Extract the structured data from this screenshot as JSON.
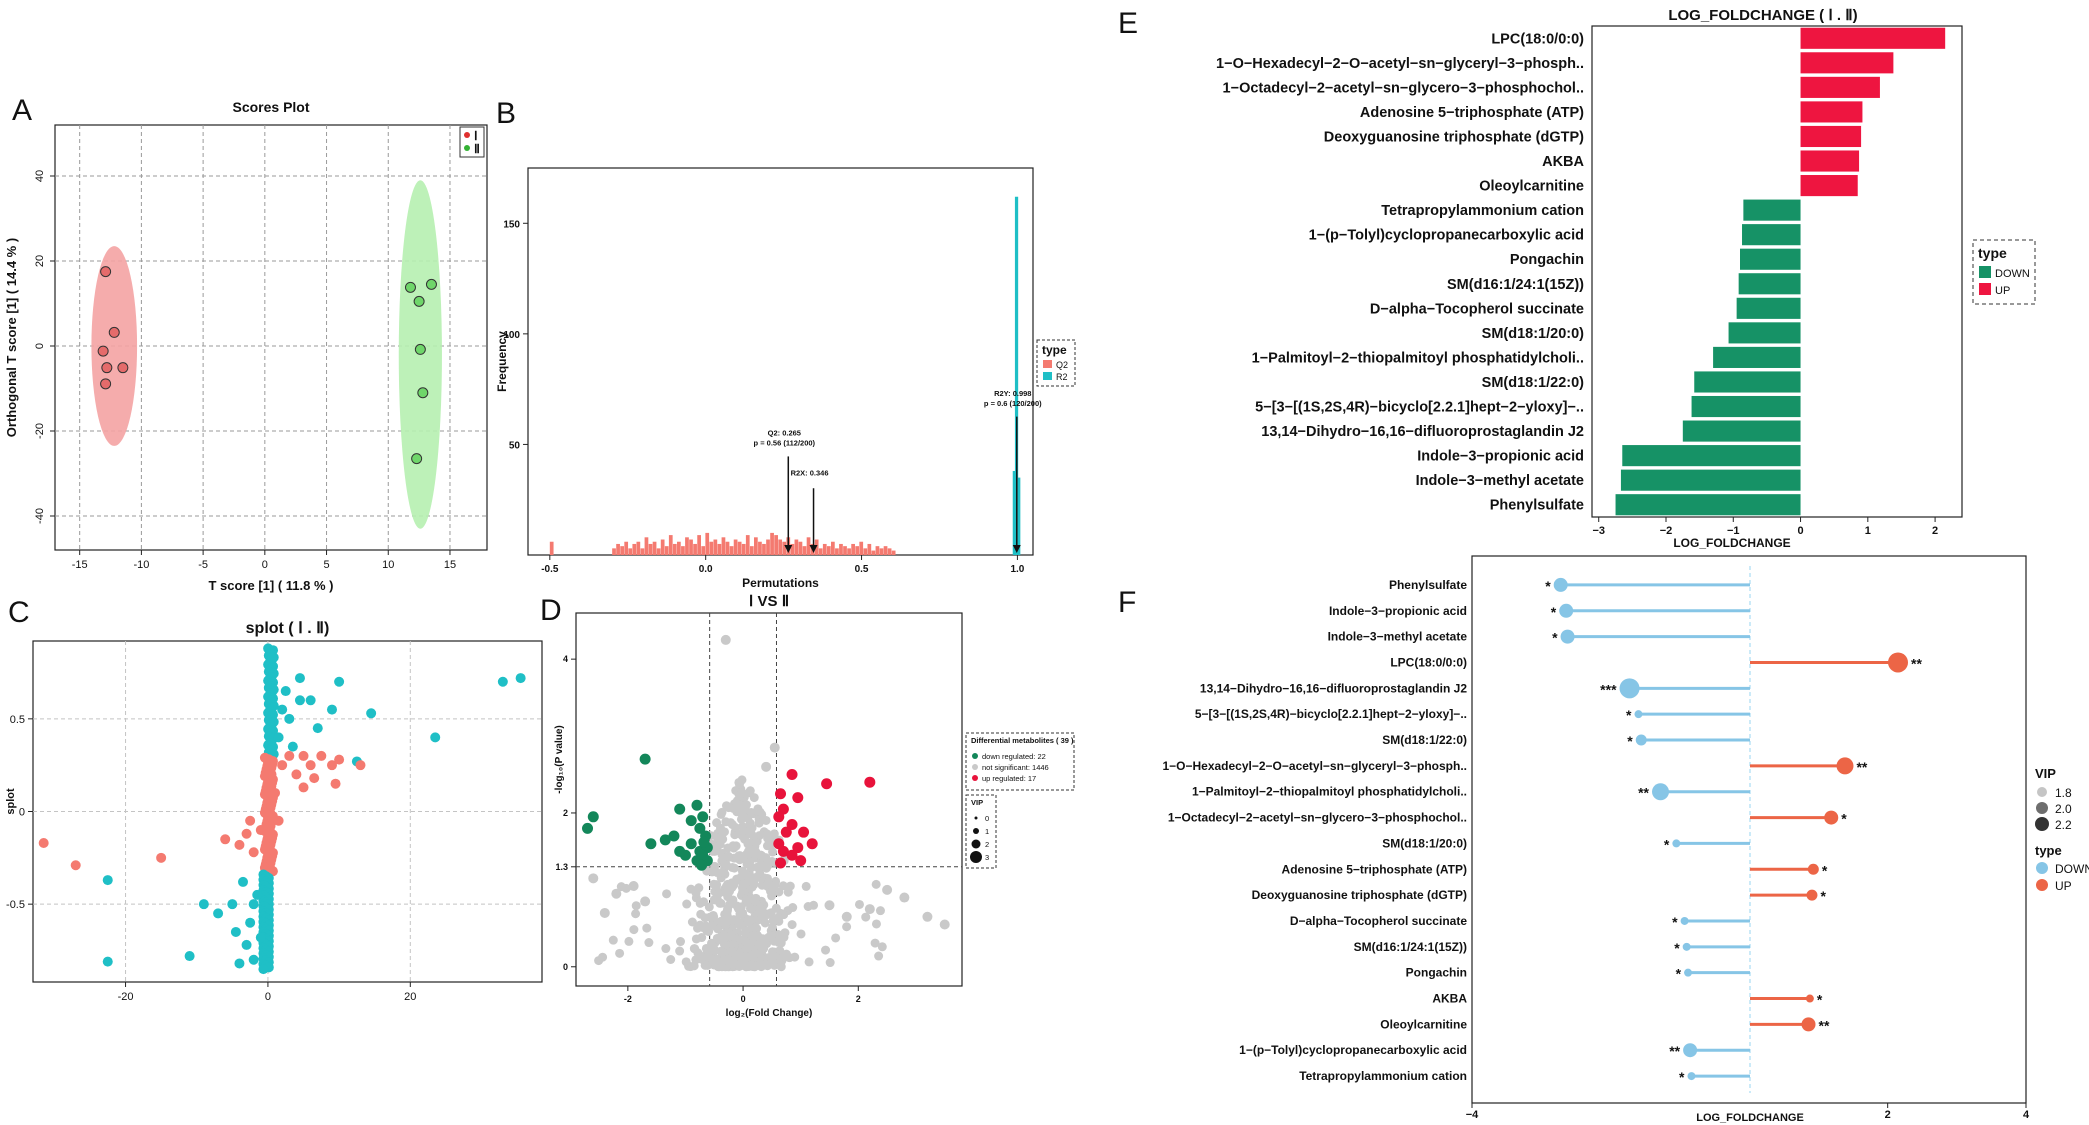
{
  "panel_letters": {
    "a": "A",
    "b": "B",
    "c": "C",
    "d": "D",
    "e": "E",
    "f": "F"
  },
  "colors": {
    "red_group": "#f4a3a3",
    "green_group": "#b6efb0",
    "q2": "#f47a70",
    "r2": "#1fbfc6",
    "down_e": "#169266",
    "up_e": "#ee1540",
    "down_f": "#86c5e6",
    "up_f": "#ec6546",
    "sig_down": "#13875a",
    "sig_up": "#e8133b",
    "gray": "#c9c9c9"
  },
  "chart_data": [
    {
      "id": "A",
      "type": "scatter",
      "title": "Scores Plot",
      "xlabel": "T score [1] ( 11.8 % )",
      "ylabel": "Orthogonal T score [1] ( 14.4 % )",
      "xlim": [
        -17,
        18
      ],
      "ylim": [
        -48,
        52
      ],
      "xticks": [
        -15,
        -10,
        -5,
        0,
        5,
        10,
        15
      ],
      "yticks": [
        -40,
        -20,
        0,
        20,
        40
      ],
      "legend": [
        "Ⅰ",
        "Ⅱ"
      ],
      "series": [
        {
          "name": "Ⅰ",
          "points": [
            [
              -12.9,
              17.5
            ],
            [
              -12.2,
              3.2
            ],
            [
              -13.1,
              -1.2
            ],
            [
              -12.8,
              -5.1
            ],
            [
              -11.5,
              -5.1
            ],
            [
              -12.9,
              -8.9
            ]
          ],
          "ellipse": {
            "cx": -12.2,
            "cy": 0,
            "rx": 1.85,
            "ry": 23.5
          }
        },
        {
          "name": "Ⅱ",
          "points": [
            [
              11.8,
              13.8
            ],
            [
              13.5,
              14.5
            ],
            [
              12.5,
              10.5
            ],
            [
              12.6,
              -0.8
            ],
            [
              12.8,
              -11
            ],
            [
              12.3,
              -26.5
            ]
          ],
          "ellipse": {
            "cx": 12.6,
            "cy": -2,
            "rx": 1.75,
            "ry": 41
          }
        }
      ]
    },
    {
      "id": "B",
      "type": "bar",
      "title": "",
      "xlabel": "Permutations",
      "ylabel": "Frequency",
      "xlim": [
        -0.57,
        1.05
      ],
      "ylim": [
        0,
        175
      ],
      "xticks": [
        -0.5,
        0,
        0.5,
        1
      ],
      "xtick_labels": [
        "-0.5",
        "0.0",
        "0.5",
        "1.0"
      ],
      "yticks": [
        50,
        100,
        150
      ],
      "ytick_labels": [
        "50",
        "100",
        "150"
      ],
      "legend_title": "type",
      "legend": [
        "Q2",
        "R2"
      ],
      "q2_bars": {
        "start": -0.3,
        "width": 0.013,
        "values": [
          3,
          5,
          4,
          6,
          3,
          5,
          6,
          3,
          8,
          5,
          6,
          3,
          7,
          4,
          9,
          5,
          6,
          4,
          8,
          7,
          5,
          9,
          4,
          10,
          6,
          7,
          5,
          8,
          6,
          4,
          7,
          6,
          5,
          9,
          4,
          8,
          6,
          5,
          7,
          10,
          9,
          7,
          6,
          8,
          5,
          7,
          6,
          4,
          8,
          5,
          7,
          3,
          5,
          4,
          6,
          3,
          5,
          4,
          3,
          5,
          4,
          6,
          3,
          5,
          2,
          4,
          3,
          4,
          3,
          2
        ]
      },
      "q2_outlier": {
        "x": -0.5,
        "value": 6
      },
      "r2_bars": [
        {
          "x": 0.985,
          "value": 38
        },
        {
          "x": 0.992,
          "value": 162
        },
        {
          "x": 0.999,
          "value": 35
        }
      ],
      "annotations": [
        {
          "line1": "Q2: 0.265",
          "line2": "p = 0.56 (112/200)",
          "x": 0.265,
          "label_y": 54,
          "arrow_top": 50
        },
        {
          "line1": "R2X: 0.346",
          "line2": "",
          "x": 0.346,
          "label_y": 36,
          "arrow_top": 32
        },
        {
          "line1": "R2Y: 0.998",
          "line2": "p = 0.6 (120/200)",
          "x": 0.998,
          "label_y": 72,
          "arrow_top": 68
        }
      ]
    },
    {
      "id": "C",
      "type": "scatter",
      "title": "splot ( Ⅰ . Ⅱ)",
      "xlabel": "",
      "ylabel": "splot",
      "xlim": [
        -33,
        38.5
      ],
      "ylim": [
        -0.92,
        0.92
      ],
      "xticks": [
        -20,
        0,
        20
      ],
      "yticks": [
        -0.5,
        0,
        0.5
      ],
      "ytick_labels": [
        "-0.5",
        "0",
        "0.5"
      ],
      "pos_points": [
        [
          33,
          0.7
        ],
        [
          35.5,
          0.72
        ],
        [
          23.5,
          0.4
        ],
        [
          14.5,
          0.53
        ],
        [
          10,
          0.7
        ],
        [
          12.5,
          0.27
        ],
        [
          4.5,
          0.6
        ],
        [
          6,
          0.6
        ],
        [
          2,
          0.55
        ],
        [
          3,
          0.5
        ],
        [
          7,
          0.45
        ],
        [
          9,
          0.55
        ],
        [
          4.5,
          0.72
        ],
        [
          2.5,
          0.65
        ],
        [
          1.5,
          0.4
        ],
        [
          3.5,
          0.35
        ],
        [
          0.6,
          0.83
        ]
      ],
      "neg_points": [
        [
          -31.5,
          -0.17
        ],
        [
          -27,
          -0.29
        ],
        [
          -15,
          -0.25
        ],
        [
          -6,
          -0.15
        ],
        [
          -4,
          -0.18
        ],
        [
          -3,
          -0.12
        ],
        [
          -2,
          -0.22
        ],
        [
          -2.5,
          -0.05
        ],
        [
          -1,
          -0.1
        ],
        [
          0.5,
          0.2
        ],
        [
          1,
          0.1
        ],
        [
          1.5,
          -0.05
        ],
        [
          2,
          0.25
        ],
        [
          3,
          0.3
        ],
        [
          5,
          0.3
        ],
        [
          6,
          0.25
        ],
        [
          7.5,
          0.3
        ],
        [
          9,
          0.25
        ],
        [
          10,
          0.28
        ],
        [
          13,
          0.25
        ],
        [
          4,
          0.2
        ],
        [
          6.5,
          0.18
        ],
        [
          9.5,
          0.15
        ],
        [
          5,
          0.13
        ]
      ],
      "cyan_neg_points": [
        [
          -22.5,
          -0.37
        ],
        [
          -22.5,
          -0.81
        ],
        [
          -11,
          -0.78
        ],
        [
          -9,
          -0.5
        ],
        [
          -7,
          -0.55
        ],
        [
          -5,
          -0.5
        ],
        [
          -4.5,
          -0.65
        ],
        [
          -3.5,
          -0.38
        ],
        [
          -3,
          -0.72
        ],
        [
          -2.5,
          -0.6
        ],
        [
          -2,
          -0.8
        ],
        [
          -1.5,
          -0.45
        ],
        [
          -4,
          -0.82
        ],
        [
          -2,
          -0.5
        ],
        [
          -1,
          -0.68
        ]
      ]
    },
    {
      "id": "D",
      "type": "scatter",
      "title": "Ⅰ VS Ⅱ",
      "xlabel": "log₂(Fold Change)",
      "ylabel": "-log₁₀(P value)",
      "xlim": [
        -2.9,
        3.8
      ],
      "ylim": [
        -0.25,
        4.6
      ],
      "xticks": [
        -2,
        0,
        2
      ],
      "yticks": [
        0,
        1.3,
        2,
        4
      ],
      "ytick_labels": [
        "0",
        "1.3",
        "2",
        "4"
      ],
      "thresholds": {
        "fc_low": -0.58,
        "fc_high": 0.58,
        "p": 1.3
      },
      "legend_title": "Differential metabolites ( 39 )",
      "legend": [
        "down regulated: 22",
        "not significant: 1446",
        "up regulated: 17"
      ],
      "vip_title": "VIP",
      "vip_levels": [
        "0",
        "1",
        "2",
        "3"
      ],
      "down_points": [
        [
          -1.7,
          2.7
        ],
        [
          -2.6,
          1.95
        ],
        [
          -2.7,
          1.8
        ],
        [
          -1.1,
          2.05
        ],
        [
          -0.8,
          2.1
        ],
        [
          -0.7,
          1.95
        ],
        [
          -0.9,
          1.9
        ],
        [
          -1.2,
          1.7
        ],
        [
          -0.75,
          1.8
        ],
        [
          -0.65,
          1.7
        ],
        [
          -1.6,
          1.6
        ],
        [
          -1.35,
          1.65
        ],
        [
          -0.9,
          1.6
        ],
        [
          -0.75,
          1.5
        ],
        [
          -0.62,
          1.55
        ],
        [
          -1.0,
          1.45
        ],
        [
          -0.8,
          1.38
        ],
        [
          -0.7,
          1.45
        ],
        [
          -0.62,
          1.38
        ],
        [
          -1.1,
          1.5
        ],
        [
          -0.68,
          1.62
        ],
        [
          -0.72,
          1.32
        ]
      ],
      "up_points": [
        [
          2.2,
          2.4
        ],
        [
          1.45,
          2.38
        ],
        [
          0.85,
          2.5
        ],
        [
          0.65,
          2.25
        ],
        [
          0.95,
          2.2
        ],
        [
          0.7,
          2.05
        ],
        [
          0.62,
          1.95
        ],
        [
          0.85,
          1.85
        ],
        [
          1.05,
          1.75
        ],
        [
          0.75,
          1.75
        ],
        [
          1.2,
          1.6
        ],
        [
          0.95,
          1.55
        ],
        [
          0.7,
          1.5
        ],
        [
          0.62,
          1.6
        ],
        [
          0.85,
          1.45
        ],
        [
          1.0,
          1.38
        ],
        [
          0.65,
          1.35
        ]
      ],
      "gray_extra": [
        [
          -0.3,
          4.25
        ],
        [
          0.55,
          2.85
        ],
        [
          0.4,
          2.6
        ],
        [
          2.5,
          1.0
        ],
        [
          2.8,
          0.9
        ],
        [
          3.5,
          0.55
        ],
        [
          3.2,
          0.65
        ],
        [
          2.2,
          0.75
        ],
        [
          1.8,
          0.65
        ],
        [
          1.5,
          0.8
        ],
        [
          -2.6,
          1.15
        ],
        [
          -2.2,
          0.95
        ],
        [
          -1.7,
          0.85
        ],
        [
          -1.9,
          1.05
        ],
        [
          -2.4,
          0.7
        ]
      ]
    },
    {
      "id": "E",
      "type": "bar",
      "title": "LOG_FOLDCHANGE ( Ⅰ . Ⅱ)",
      "xlabel": "LOG_FOLDCHANGE",
      "xlim": [
        -3.1,
        2.4
      ],
      "xticks": [
        -3,
        -2,
        -1,
        0,
        1,
        2
      ],
      "legend_title": "type",
      "legend": [
        "DOWN",
        "UP"
      ],
      "categories": [
        "LPC(18:0/0:0)",
        "1−O−Hexadecyl−2−O−acetyl−sn−glyceryl−3−phosph..",
        "1−Octadecyl−2−acetyl−sn−glycero−3−phosphochol..",
        "Adenosine 5−triphosphate (ATP)",
        "Deoxyguanosine triphosphate (dGTP)",
        "AKBA",
        "Oleoylcarnitine",
        "Tetrapropylammonium cation",
        "1−(p−Tolyl)cyclopropanecarboxylic acid",
        "Pongachin",
        "SM(d16:1/24:1(15Z))",
        "D−alpha−Tocopherol succinate",
        "SM(d18:1/20:0)",
        "1−Palmitoyl−2−thiopalmitoyl phosphatidylcholi..",
        "SM(d18:1/22:0)",
        "5−[3−[(1S,2S,4R)−bicyclo[2.2.1]hept−2−yloxy]−..",
        "13,14−Dihydro−16,16−difluoroprostaglandin J2",
        "Indole−3−propionic acid",
        "Indole−3−methyl acetate",
        "Phenylsulfate"
      ],
      "values": [
        2.15,
        1.38,
        1.18,
        0.92,
        0.9,
        0.87,
        0.85,
        -0.85,
        -0.87,
        -0.9,
        -0.92,
        -0.95,
        -1.07,
        -1.3,
        -1.58,
        -1.62,
        -1.75,
        -2.65,
        -2.67,
        -2.75
      ]
    },
    {
      "id": "F",
      "type": "scatter",
      "title": "",
      "xlabel": "LOG_FOLDCHANGE",
      "xlim": [
        -4,
        4
      ],
      "xticks": [
        -4,
        2,
        4
      ],
      "legend_vip_title": "VIP",
      "vip_levels": [
        "1.8",
        "2.0",
        "2.2"
      ],
      "legend_type_title": "type",
      "legend": [
        "DOWN",
        "UP"
      ],
      "categories": [
        "Phenylsulfate",
        "Indole−3−propionic acid",
        "Indole−3−methyl acetate",
        "LPC(18:0/0:0)",
        "13,14−Dihydro−16,16−difluoroprostaglandin J2",
        "5−[3−[(1S,2S,4R)−bicyclo[2.2.1]hept−2−yloxy]−..",
        "SM(d18:1/22:0)",
        "1−O−Hexadecyl−2−O−acetyl−sn−glyceryl−3−phosph..",
        "1−Palmitoyl−2−thiopalmitoyl phosphatidylcholi..",
        "1−Octadecyl−2−acetyl−sn−glycero−3−phosphochol..",
        "SM(d18:1/20:0)",
        "Adenosine 5−triphosphate (ATP)",
        "Deoxyguanosine triphosphate (dGTP)",
        "D−alpha−Tocopherol succinate",
        "SM(d16:1/24:1(15Z))",
        "Pongachin",
        "AKBA",
        "Oleoylcarnitine",
        "1−(p−Tolyl)cyclopropanecarboxylic acid",
        "Tetrapropylammonium cation"
      ],
      "values": [
        -2.75,
        -2.67,
        -2.65,
        2.15,
        -1.75,
        -1.62,
        -1.58,
        1.38,
        -1.3,
        1.18,
        -1.07,
        0.92,
        0.9,
        -0.95,
        -0.92,
        -0.9,
        0.87,
        0.85,
        -0.87,
        -0.85
      ],
      "vip": [
        2.0,
        2.0,
        2.0,
        2.2,
        2.2,
        1.8,
        1.9,
        2.1,
        2.1,
        2.0,
        1.8,
        1.9,
        1.9,
        1.8,
        1.8,
        1.8,
        1.8,
        2.0,
        2.0,
        1.8
      ],
      "stars": [
        "*",
        "*",
        "*",
        "**",
        "***",
        "*",
        "*",
        "**",
        "**",
        "*",
        "*",
        "*",
        "*",
        "*",
        "*",
        "*",
        "*",
        "**",
        "**",
        "*"
      ]
    }
  ]
}
